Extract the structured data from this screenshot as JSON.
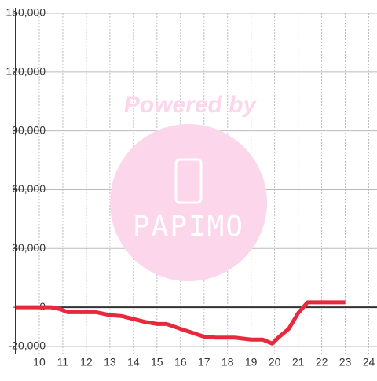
{
  "chart_data": {
    "type": "line",
    "x": [
      9,
      10.5,
      10.9,
      11.2,
      12.4,
      13,
      13.5,
      14,
      14.5,
      15,
      15.4,
      16,
      16.5,
      17,
      17.5,
      18.3,
      19,
      19.5,
      19.9,
      20.2,
      20.6,
      21,
      21.4,
      22,
      23
    ],
    "series": [
      {
        "color": "#e8283c",
        "values": [
          0,
          0,
          -1000,
          -2500,
          -2500,
          -4000,
          -4500,
          -6000,
          -7500,
          -8500,
          -8500,
          -11000,
          -13000,
          -15000,
          -15500,
          -15500,
          -16500,
          -16500,
          -18500,
          -15000,
          -11000,
          -3000,
          2500,
          2500,
          2500
        ]
      }
    ],
    "xlim": [
      9,
      24.35
    ],
    "xticks": [
      10,
      11,
      12,
      13,
      14,
      15,
      16,
      17,
      18,
      19,
      20,
      21,
      22,
      23,
      24
    ],
    "ylim": [
      -20000,
      150000
    ],
    "yticks": [
      {
        "value": -20000,
        "label": "-20,000"
      },
      0,
      {
        "value": 30000,
        "label": "30,000"
      },
      {
        "value": 60000,
        "label": "60,000"
      },
      {
        "value": 90000,
        "label": "90,000"
      },
      {
        "value": 120000,
        "label": "120,000"
      },
      {
        "value": 150000,
        "label": "150,000"
      }
    ],
    "grid": true,
    "watermark": {
      "text": "Powered by",
      "logo": "PAPIMO"
    }
  }
}
